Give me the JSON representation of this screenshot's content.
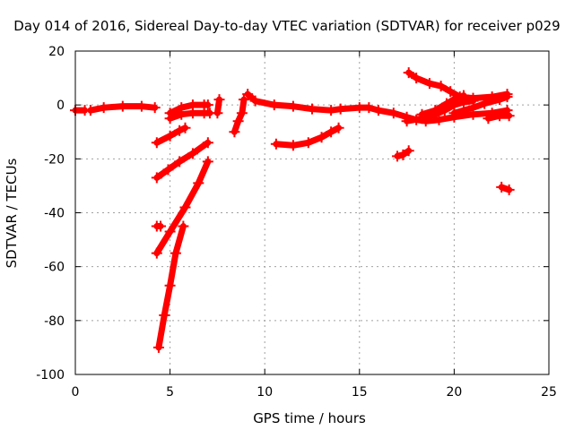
{
  "chart_data": {
    "type": "scatter",
    "title": "Day 014 of 2016, Sidereal Day-to-day VTEC variation (SDTVAR) for receiver p029",
    "xlabel": "GPS time / hours",
    "ylabel": "SDTVAR / TECUs",
    "xlim": [
      0,
      25
    ],
    "ylim": [
      -100,
      20
    ],
    "xticks": [
      0,
      5,
      10,
      15,
      20,
      25
    ],
    "yticks": [
      -100,
      -80,
      -60,
      -40,
      -20,
      0,
      20
    ],
    "grid": true,
    "marker": "+",
    "series": [
      {
        "name": "SDTVAR",
        "color": "#ff0000",
        "segments": [
          [
            [
              0.0,
              -2.0
            ],
            [
              0.5,
              -2.0
            ]
          ],
          [
            [
              0.8,
              -2.0
            ],
            [
              1.5,
              -1.0
            ],
            [
              2.5,
              -0.5
            ],
            [
              3.5,
              -0.5
            ],
            [
              4.2,
              -1.0
            ]
          ],
          [
            [
              4.3,
              -45.0
            ],
            [
              4.5,
              -45.0
            ]
          ],
          [
            [
              4.3,
              -14.0
            ],
            [
              5.0,
              -11.5
            ],
            [
              5.5,
              -9.5
            ],
            [
              5.8,
              -8.5
            ]
          ],
          [
            [
              4.3,
              -27.0
            ],
            [
              4.9,
              -24.0
            ],
            [
              5.5,
              -21.0
            ],
            [
              6.2,
              -18.0
            ],
            [
              7.0,
              -14.0
            ]
          ],
          [
            [
              4.3,
              -55.0
            ],
            [
              5.0,
              -47.0
            ],
            [
              5.8,
              -38.0
            ],
            [
              6.5,
              -29.0
            ],
            [
              7.0,
              -21.0
            ]
          ],
          [
            [
              4.4,
              -90.0
            ],
            [
              4.7,
              -78.0
            ],
            [
              5.0,
              -67.0
            ],
            [
              5.3,
              -55.0
            ],
            [
              5.7,
              -45.0
            ]
          ],
          [
            [
              5.0,
              -3.0
            ],
            [
              5.6,
              -1.0
            ],
            [
              6.2,
              0.0
            ],
            [
              6.8,
              0.0
            ],
            [
              7.0,
              0.0
            ]
          ],
          [
            [
              5.0,
              -5.0
            ],
            [
              5.6,
              -3.5
            ],
            [
              6.2,
              -3.0
            ],
            [
              6.8,
              -3.0
            ],
            [
              7.1,
              -3.0
            ]
          ],
          [
            [
              7.5,
              -3.0
            ],
            [
              7.6,
              2.0
            ]
          ],
          [
            [
              8.4,
              -10.0
            ],
            [
              8.6,
              -6.0
            ],
            [
              8.8,
              -3.0
            ],
            [
              8.9,
              2.0
            ]
          ],
          [
            [
              9.1,
              4.0
            ],
            [
              9.5,
              1.5
            ],
            [
              10.5,
              0.0
            ],
            [
              11.5,
              -0.5
            ],
            [
              12.5,
              -1.5
            ],
            [
              13.5,
              -2.0
            ],
            [
              14.0,
              -1.5
            ],
            [
              15.0,
              -1.0
            ],
            [
              15.5,
              -1.0
            ],
            [
              16.0,
              -2.0
            ],
            [
              16.8,
              -3.0
            ],
            [
              17.5,
              -4.5
            ],
            [
              18.0,
              -5.5
            ],
            [
              18.5,
              -6.0
            ],
            [
              19.2,
              -5.5
            ],
            [
              20.0,
              -4.5
            ],
            [
              21.0,
              -3.5
            ],
            [
              22.0,
              -3.0
            ],
            [
              22.8,
              -2.0
            ]
          ],
          [
            [
              10.6,
              -14.5
            ],
            [
              11.5,
              -15.0
            ],
            [
              12.3,
              -14.0
            ],
            [
              13.0,
              -12.0
            ],
            [
              13.5,
              -10.0
            ],
            [
              13.9,
              -8.5
            ]
          ],
          [
            [
              17.0,
              -19.0
            ],
            [
              17.3,
              -18.5
            ],
            [
              17.6,
              -17.0
            ]
          ],
          [
            [
              17.6,
              12.0
            ],
            [
              18.0,
              10.0
            ],
            [
              18.7,
              8.0
            ],
            [
              19.3,
              7.0
            ],
            [
              19.8,
              5.0
            ],
            [
              20.3,
              3.0
            ],
            [
              21.0,
              2.5
            ],
            [
              22.0,
              3.0
            ],
            [
              22.8,
              4.0
            ]
          ],
          [
            [
              17.5,
              -6.0
            ],
            [
              18.3,
              -5.0
            ],
            [
              19.0,
              -3.5
            ],
            [
              19.5,
              -2.0
            ],
            [
              20.0,
              0.0
            ],
            [
              20.5,
              1.0
            ],
            [
              21.0,
              1.5
            ]
          ],
          [
            [
              18.3,
              -3.5
            ],
            [
              19.0,
              -2.0
            ],
            [
              19.6,
              0.5
            ],
            [
              20.1,
              2.5
            ],
            [
              20.5,
              3.5
            ]
          ],
          [
            [
              20.0,
              -3.0
            ],
            [
              21.0,
              -1.0
            ],
            [
              21.6,
              0.5
            ],
            [
              22.4,
              2.0
            ],
            [
              22.8,
              3.0
            ]
          ],
          [
            [
              21.8,
              -5.0
            ],
            [
              22.4,
              -4.0
            ],
            [
              22.9,
              -4.0
            ]
          ],
          [
            [
              22.5,
              -30.5
            ],
            [
              22.9,
              -31.5
            ]
          ]
        ]
      }
    ]
  }
}
